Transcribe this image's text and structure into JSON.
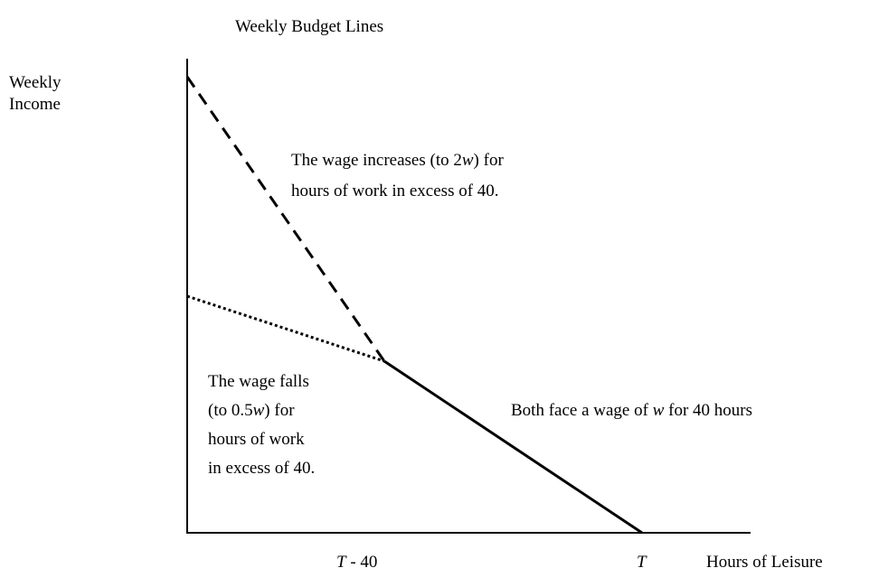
{
  "title": "Weekly Budget Lines",
  "y_axis_label": [
    "Weekly",
    "Income"
  ],
  "x_axis_label": "Hours of Leisure",
  "x_ticks": [
    [
      {
        "text": "T",
        "italic": true
      },
      {
        "text": " - 40"
      }
    ],
    [
      {
        "text": "T",
        "italic": true
      }
    ]
  ],
  "annotations": [
    {
      "lines": [
        [
          {
            "text": "The wage increases (to 2"
          },
          {
            "text": "w",
            "italic": true
          },
          {
            "text": ") for"
          }
        ],
        [
          {
            "text": "hours of work in excess of 40."
          }
        ]
      ]
    },
    {
      "lines": [
        [
          {
            "text": "The wage falls"
          }
        ],
        [
          {
            "text": "(to 0.5"
          },
          {
            "text": "w",
            "italic": true
          },
          {
            "text": ") for"
          }
        ],
        [
          {
            "text": "hours of work"
          }
        ],
        [
          {
            "text": "in excess of 40."
          }
        ]
      ]
    },
    {
      "lines": [
        [
          {
            "text": "Both face a wage of "
          },
          {
            "text": "w",
            "italic": true
          },
          {
            "text": " for 40 hours"
          }
        ]
      ]
    }
  ]
}
